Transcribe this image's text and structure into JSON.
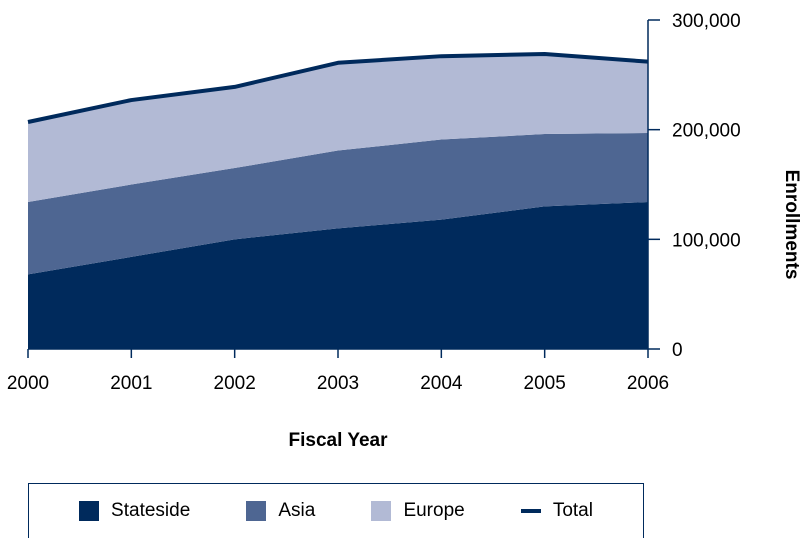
{
  "chart_data": {
    "type": "area",
    "stacked": true,
    "x": [
      "2000",
      "2001",
      "2002",
      "2003",
      "2004",
      "2005",
      "2006"
    ],
    "series": [
      {
        "name": "Stateside",
        "values": [
          68000,
          84000,
          100000,
          110000,
          118000,
          130000,
          134000
        ],
        "color": "#002a5c"
      },
      {
        "name": "Asia",
        "values": [
          66000,
          66000,
          65000,
          71000,
          73000,
          66000,
          63000
        ],
        "color": "#4e6692"
      },
      {
        "name": "Europe",
        "values": [
          73000,
          77000,
          74000,
          80000,
          76000,
          73000,
          65000
        ],
        "color": "#b2bad5"
      }
    ],
    "total": {
      "name": "Total",
      "values": [
        207000,
        227000,
        239000,
        261000,
        267000,
        269000,
        262000
      ],
      "color": "#002a5c"
    },
    "xlabel": "Fiscal Year",
    "ylabel": "Enrollments",
    "ylim": [
      0,
      300000
    ],
    "yticks": [
      0,
      100000,
      200000,
      300000
    ],
    "ytick_labels": [
      "0",
      "100,000",
      "200,000",
      "300,000"
    ],
    "y_axis_side": "right",
    "grid": false,
    "legend_position": "bottom"
  }
}
